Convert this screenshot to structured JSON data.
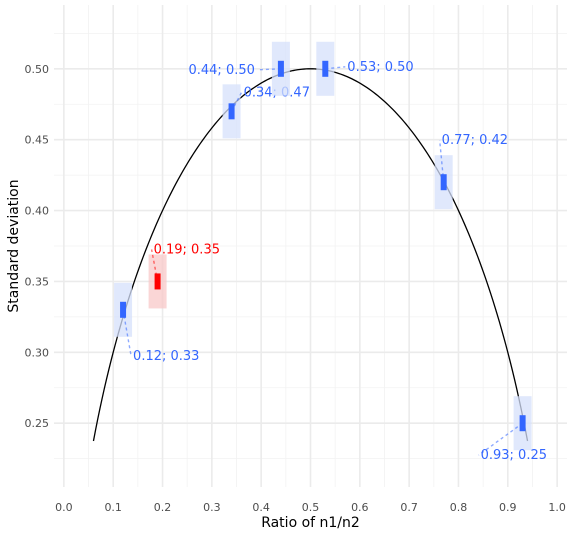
{
  "chart_data": {
    "type": "scatter",
    "title": "",
    "xlabel": "Ratio of n1/n2",
    "ylabel": "Standard deviation",
    "xlim": [
      -0.02,
      1.02
    ],
    "ylim": [
      0.205,
      0.545
    ],
    "xticks": [
      "0.0",
      "0.1",
      "0.2",
      "0.3",
      "0.4",
      "0.5",
      "0.6",
      "0.7",
      "0.8",
      "0.9",
      "1.0"
    ],
    "yticks": [
      "0.25",
      "0.30",
      "0.35",
      "0.40",
      "0.45",
      "0.50"
    ],
    "grid": true,
    "curve": {
      "formula": "sqrt(r*(1-r))",
      "x_range": [
        0.06,
        0.94
      ],
      "color": "#000000"
    },
    "points": [
      {
        "x": 0.12,
        "y": 0.33,
        "label": "0.12; 0.33",
        "color": "#3366ff",
        "highlight": false
      },
      {
        "x": 0.19,
        "y": 0.35,
        "label": "0.19; 0.35",
        "color": "#ff0000",
        "highlight": true
      },
      {
        "x": 0.34,
        "y": 0.47,
        "label": "0.34; 0.47",
        "color": "#3366ff",
        "highlight": false
      },
      {
        "x": 0.44,
        "y": 0.5,
        "label": "0.44; 0.50",
        "color": "#3366ff",
        "highlight": false
      },
      {
        "x": 0.53,
        "y": 0.5,
        "label": "0.53; 0.50",
        "color": "#3366ff",
        "highlight": false
      },
      {
        "x": 0.77,
        "y": 0.42,
        "label": "0.77; 0.42",
        "color": "#3366ff",
        "highlight": false
      },
      {
        "x": 0.93,
        "y": 0.25,
        "label": "0.93; 0.25",
        "color": "#3366ff",
        "highlight": false
      }
    ]
  }
}
